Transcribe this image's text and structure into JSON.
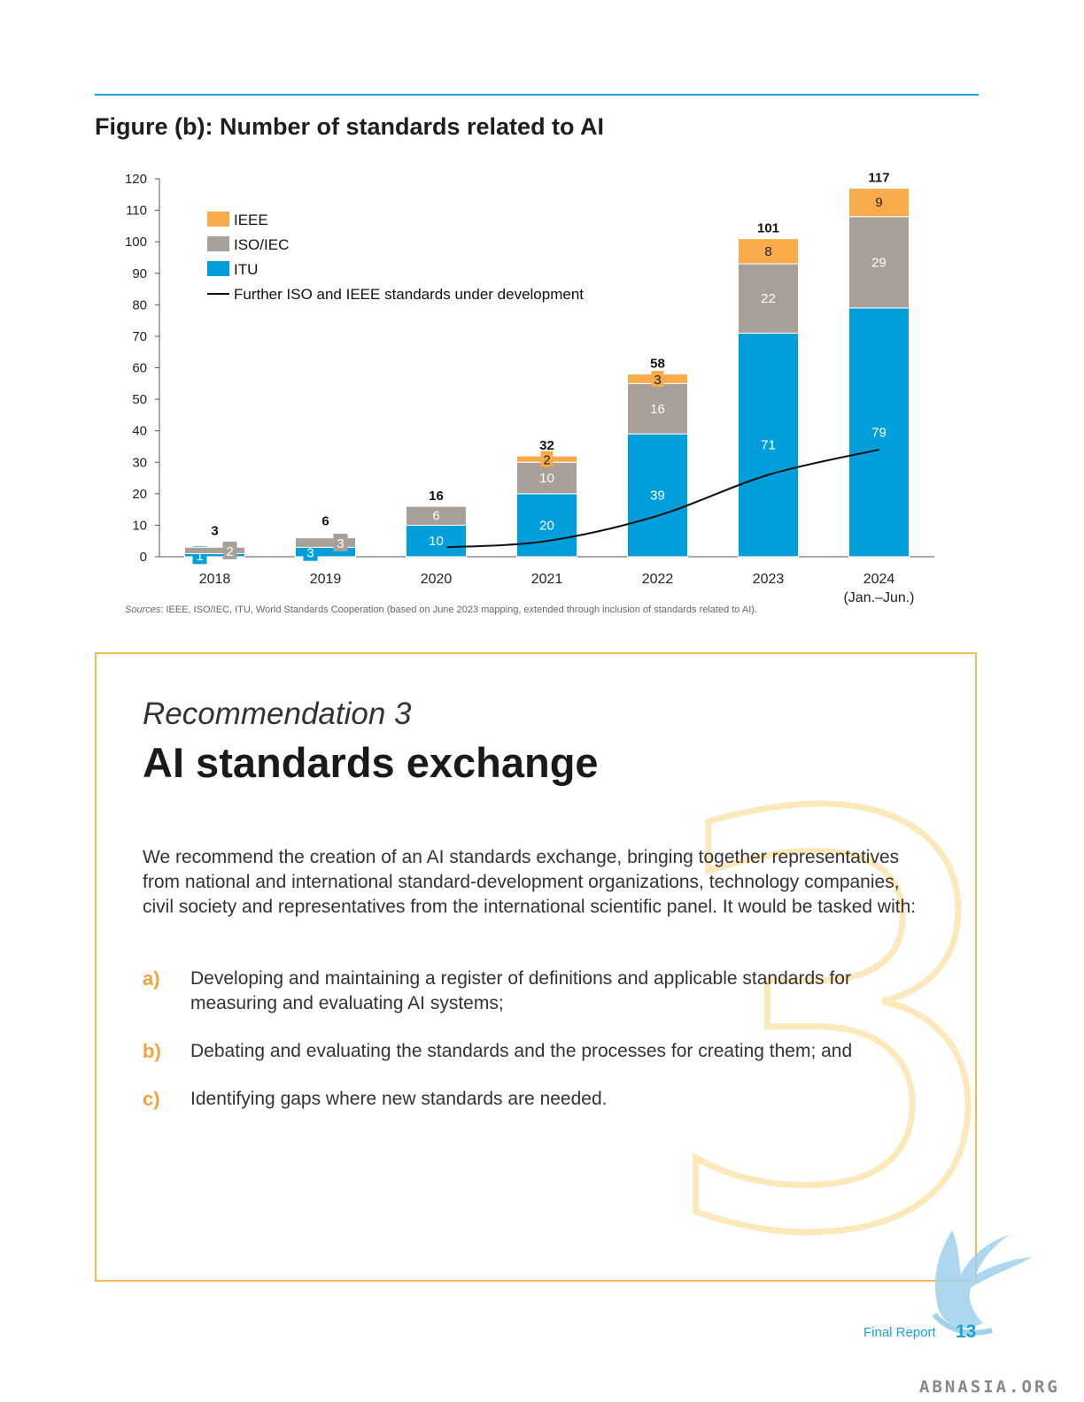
{
  "figure": {
    "title": "Figure (b): Number of standards related to AI",
    "sources_label": "Sources",
    "sources_text": ": IEEE, ISO/IEC, ITU, World Standards Cooperation (based on June 2023 mapping, extended through inclusion of standards related to AI)."
  },
  "chart_data": {
    "type": "bar",
    "stacked": true,
    "categories": [
      "2018",
      "2019",
      "2020",
      "2021",
      "2022",
      "2023",
      "2024"
    ],
    "category_sublabels": [
      "",
      "",
      "",
      "",
      "",
      "",
      "(Jan.–Jun.)"
    ],
    "series": [
      {
        "name": "ITU",
        "values": [
          1,
          3,
          10,
          20,
          39,
          71,
          79
        ],
        "color": "#009fdb"
      },
      {
        "name": "ISO/IEC",
        "values": [
          2,
          3,
          6,
          10,
          16,
          22,
          29
        ],
        "color": "#a79f98"
      },
      {
        "name": "IEEE",
        "values": [
          0,
          0,
          0,
          2,
          3,
          8,
          9
        ],
        "color": "#f7ab4a"
      }
    ],
    "totals": [
      3,
      6,
      16,
      32,
      58,
      101,
      117
    ],
    "line_series": {
      "name": "Further ISO and IEEE standards under development",
      "x": [
        "2020",
        "2021",
        "2022",
        "2023",
        "2024"
      ],
      "values": [
        3,
        5,
        13,
        26,
        34
      ],
      "color": "#111111"
    },
    "legend": [
      "IEEE",
      "ISO/IEC",
      "ITU",
      "Further ISO and IEEE standards under development"
    ],
    "legend_position": "top-left",
    "ylim": [
      0,
      120
    ],
    "yticks": [
      0,
      10,
      20,
      30,
      40,
      50,
      60,
      70,
      80,
      90,
      100,
      110,
      120
    ],
    "grid": false,
    "xlabel": "",
    "ylabel": ""
  },
  "recommendation": {
    "kicker": "Recommendation 3",
    "title": "AI standards exchange",
    "watermark_numeral": "3",
    "intro": "We recommend the creation of an AI standards exchange, bringing together representatives from national and international standard-development organizations, technology companies, civil society and representatives from the international scientific panel. It would be tasked with:",
    "items": [
      {
        "marker": "a)",
        "text": "Developing and maintaining a register of definitions and applicable standards for measuring and evaluating AI systems;"
      },
      {
        "marker": "b)",
        "text": "Debating and evaluating the standards and the processes for creating them; and"
      },
      {
        "marker": "c)",
        "text": "Identifying gaps where new standards are needed."
      }
    ]
  },
  "footer": {
    "label": "Final Report",
    "page": "13",
    "watermark": "ABNASIA.ORG"
  },
  "colors": {
    "accent_blue": "#1aa3d9",
    "box_border": "#f5b94e",
    "marker_orange": "#f2a33a"
  }
}
